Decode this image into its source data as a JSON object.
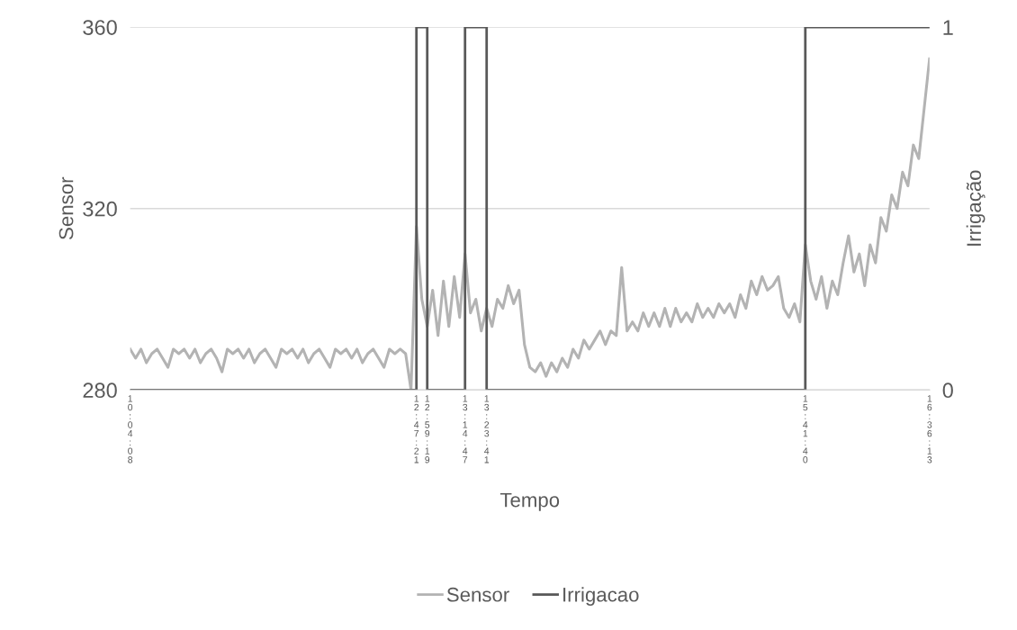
{
  "chart_data": {
    "type": "line",
    "xlabel": "Tempo",
    "ylabel": "Sensor",
    "y2label": "Irrigação",
    "categories": [
      "10:04:08",
      null,
      null,
      null,
      null,
      null,
      null,
      null,
      null,
      null,
      null,
      null,
      null,
      null,
      null,
      null,
      null,
      null,
      null,
      null,
      null,
      null,
      null,
      null,
      null,
      null,
      null,
      null,
      null,
      null,
      null,
      null,
      null,
      null,
      null,
      null,
      null,
      null,
      null,
      null,
      null,
      null,
      null,
      null,
      null,
      null,
      null,
      null,
      null,
      null,
      null,
      null,
      null,
      "12:47:21",
      null,
      "12:59:19",
      null,
      null,
      null,
      null,
      null,
      null,
      "13:14:47",
      null,
      null,
      null,
      "13:23:41",
      null,
      null,
      null,
      null,
      null,
      null,
      null,
      null,
      null,
      null,
      null,
      null,
      null,
      null,
      null,
      null,
      null,
      null,
      null,
      null,
      null,
      null,
      null,
      null,
      null,
      null,
      null,
      null,
      null,
      null,
      null,
      null,
      null,
      null,
      null,
      null,
      null,
      null,
      null,
      null,
      null,
      null,
      null,
      null,
      null,
      null,
      null,
      null,
      null,
      null,
      null,
      null,
      null,
      null,
      null,
      null,
      null,
      null,
      "15:41:40",
      null,
      null,
      null,
      null,
      null,
      null,
      null,
      null,
      null,
      null,
      null,
      null,
      null,
      null,
      null,
      null,
      null,
      null,
      null,
      null,
      null,
      null,
      "16:36:13"
    ],
    "ylim": [
      280,
      360
    ],
    "yticks": [
      280,
      320,
      360
    ],
    "y2lim": [
      0,
      1
    ],
    "y2ticks": [
      0,
      1
    ],
    "grid": "y",
    "legend": "bottom",
    "marker": "none",
    "line_style": "solid",
    "series": [
      {
        "name": "Sensor",
        "color": "#b3b3b3",
        "values": [
          289,
          287,
          289,
          286,
          288,
          289,
          287,
          285,
          289,
          288,
          289,
          287,
          289,
          286,
          288,
          289,
          287,
          284,
          289,
          288,
          289,
          287,
          289,
          286,
          288,
          289,
          287,
          285,
          289,
          288,
          289,
          287,
          289,
          286,
          288,
          289,
          287,
          285,
          289,
          288,
          289,
          287,
          289,
          286,
          288,
          289,
          287,
          285,
          289,
          288,
          289,
          288,
          280,
          316,
          300,
          294,
          302,
          292,
          304,
          294,
          305,
          296,
          310,
          297,
          300,
          293,
          298,
          294,
          300,
          298,
          303,
          299,
          302,
          290,
          285,
          284,
          286,
          283,
          286,
          284,
          287,
          285,
          289,
          287,
          291,
          289,
          291,
          293,
          290,
          293,
          292,
          307,
          293,
          295,
          293,
          297,
          294,
          297,
          294,
          298,
          294,
          298,
          295,
          297,
          295,
          299,
          296,
          298,
          296,
          299,
          297,
          299,
          296,
          301,
          298,
          304,
          301,
          305,
          302,
          303,
          305,
          298,
          296,
          299,
          295,
          312,
          304,
          300,
          305,
          298,
          304,
          301,
          308,
          314,
          306,
          310,
          303,
          312,
          308,
          318,
          315,
          323,
          320,
          328,
          325,
          334,
          331,
          342,
          353
        ]
      },
      {
        "name": "Irrigacao",
        "type": "step",
        "axis": "y2",
        "color": "#595959",
        "values": [
          0,
          0,
          0,
          0,
          0,
          0,
          0,
          0,
          0,
          0,
          0,
          0,
          0,
          0,
          0,
          0,
          0,
          0,
          0,
          0,
          0,
          0,
          0,
          0,
          0,
          0,
          0,
          0,
          0,
          0,
          0,
          0,
          0,
          0,
          0,
          0,
          0,
          0,
          0,
          0,
          0,
          0,
          0,
          0,
          0,
          0,
          0,
          0,
          0,
          0,
          0,
          0,
          0,
          1,
          1,
          0,
          0,
          0,
          0,
          0,
          0,
          0,
          1,
          1,
          1,
          1,
          0,
          0,
          0,
          0,
          0,
          0,
          0,
          0,
          0,
          0,
          0,
          0,
          0,
          0,
          0,
          0,
          0,
          0,
          0,
          0,
          0,
          0,
          0,
          0,
          0,
          0,
          0,
          0,
          0,
          0,
          0,
          0,
          0,
          0,
          0,
          0,
          0,
          0,
          0,
          0,
          0,
          0,
          0,
          0,
          0,
          0,
          0,
          0,
          0,
          0,
          0,
          0,
          0,
          0,
          0,
          0,
          0,
          0,
          0,
          1,
          1,
          1,
          1,
          1,
          1,
          1,
          1,
          1,
          1,
          1,
          1,
          1,
          1,
          1,
          1,
          1,
          1,
          1,
          1,
          1,
          1,
          1,
          1
        ]
      }
    ]
  }
}
